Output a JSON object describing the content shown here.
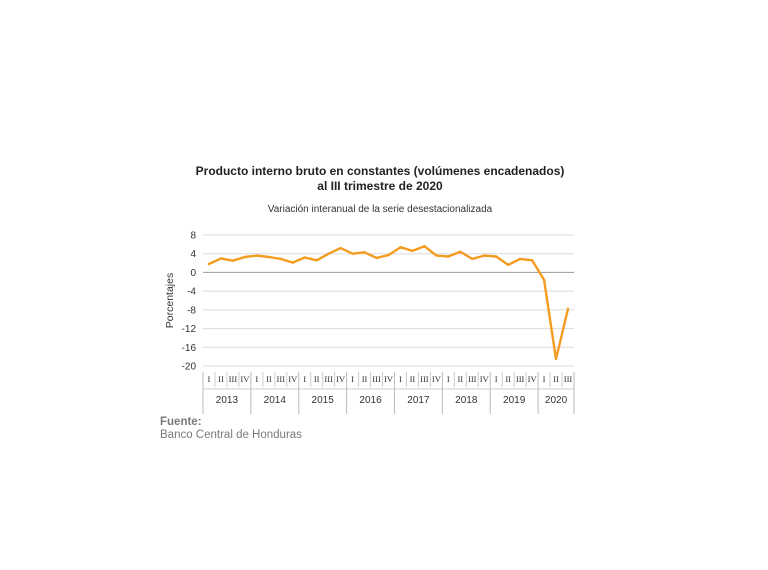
{
  "chart_data": {
    "type": "line",
    "title_line1": "Producto interno bruto en constantes (volúmenes encadenados)",
    "title_line2": "al III trimestre de 2020",
    "subtitle": "Variación interanual de la serie desestacionalizada",
    "ylabel": "Porcentajes",
    "ylim": [
      -20,
      8
    ],
    "yticks": [
      8,
      4,
      0,
      -4,
      -8,
      -12,
      -16,
      -20
    ],
    "grid": true,
    "series_color": "#F39C1F",
    "quarter_labels": [
      "I",
      "II",
      "III",
      "IV"
    ],
    "years": [
      "2013",
      "2014",
      "2015",
      "2016",
      "2017",
      "2018",
      "2019",
      "2020"
    ],
    "quarters_per_year": [
      4,
      4,
      4,
      4,
      4,
      4,
      4,
      3
    ],
    "series": [
      {
        "values": [
          1.8,
          3.0,
          2.5,
          3.3,
          3.6,
          3.3,
          2.9,
          2.1,
          3.2,
          2.6,
          4.0,
          5.2,
          4.0,
          4.3,
          3.1,
          3.7,
          5.4,
          4.6,
          5.6,
          3.6,
          3.4,
          4.4,
          2.9,
          3.6,
          3.4,
          1.6,
          2.9,
          2.6,
          -1.6,
          -18.5,
          -7.8
        ]
      }
    ]
  },
  "source": {
    "label": "Fuente:",
    "text": "Banco Central de Honduras"
  }
}
